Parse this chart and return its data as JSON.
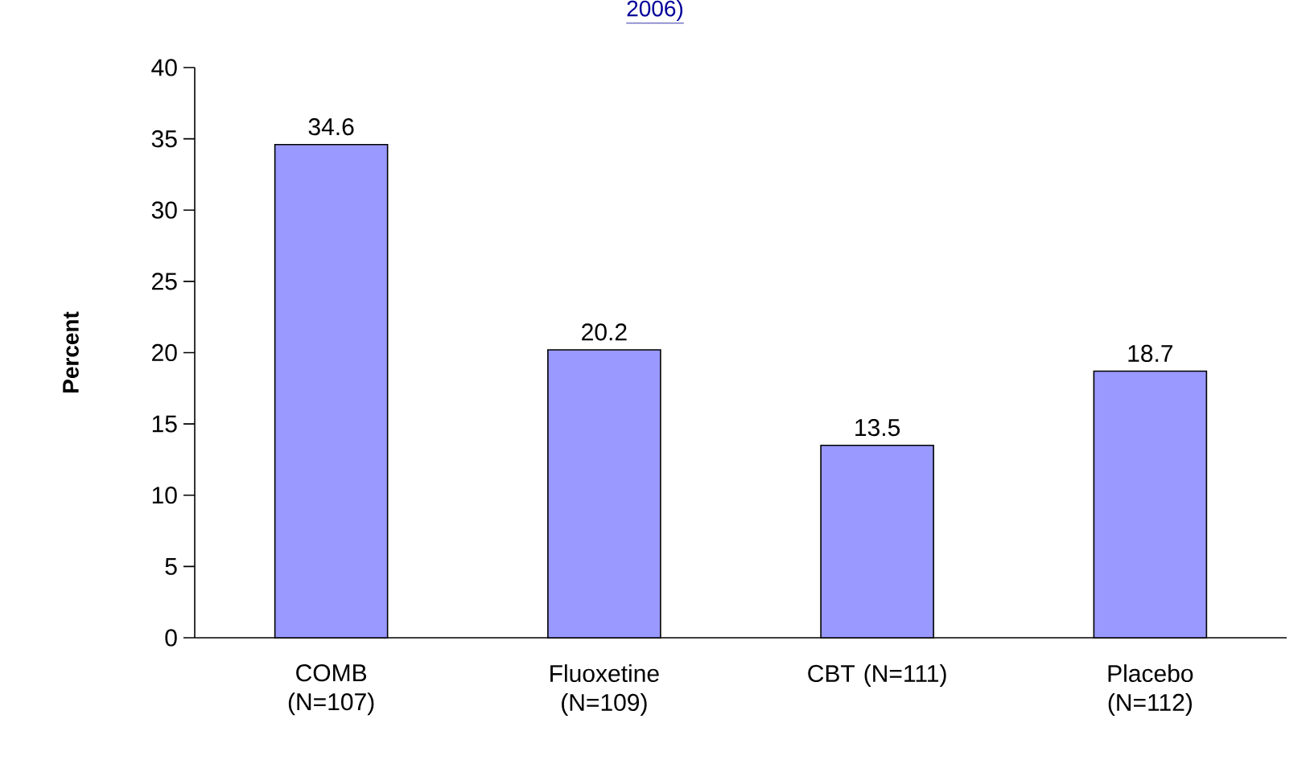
{
  "chart_data": {
    "type": "bar",
    "title": "2006)",
    "categories": [
      "COMB (N=107)",
      "Fluoxetine (N=109)",
      "CBT (N=111)",
      "Placebo (N=112)"
    ],
    "values": [
      34.6,
      20.2,
      13.5,
      18.7
    ],
    "color": "#9999ff",
    "ylabel": "Percent",
    "ylim": [
      0,
      40
    ],
    "yticks": [
      0,
      5,
      10,
      15,
      20,
      25,
      30,
      35,
      40
    ],
    "data_labels": true
  }
}
